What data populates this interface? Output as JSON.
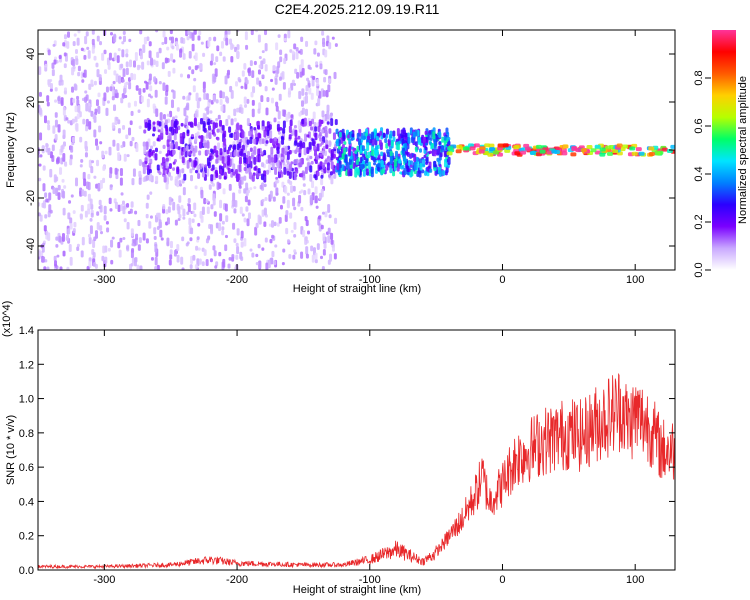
{
  "title": "C2E4.2025.212.09.19.R11",
  "colors": {
    "snr_line": "#e8282a",
    "colormap": [
      "#ffffff",
      "#c9a8ff",
      "#7a00ff",
      "#2b00ff",
      "#0080ff",
      "#00e5ff",
      "#00ff66",
      "#b6ff00",
      "#ffd000",
      "#ff5a00",
      "#ff0000",
      "#ff3399"
    ]
  },
  "chart_data": [
    {
      "type": "heatmap",
      "xlabel": "Height of straight line (km)",
      "ylabel": "Frequency (Hz)",
      "xlim": [
        -350,
        130
      ],
      "ylim": [
        -50,
        50
      ],
      "xticks": [
        -300,
        -200,
        -100,
        0,
        100
      ],
      "xtick_labels": [
        "-300",
        "-200",
        "-100",
        "0",
        "100"
      ],
      "yticks": [
        -40,
        -20,
        0,
        20,
        40
      ],
      "ytick_labels": [
        "-40",
        "-20",
        "0",
        "20",
        "40"
      ],
      "colorbar": {
        "label": "Normalized spectral amplitude",
        "range": [
          0,
          1
        ],
        "ticks": [
          0.0,
          0.2,
          0.4,
          0.6,
          0.8
        ],
        "tick_labels": [
          "0.0",
          "0.2",
          "0.4",
          "0.6",
          "0.8"
        ]
      },
      "features": [
        {
          "x_range": [
            -350,
            -125
          ],
          "freq_range": [
            -50,
            50
          ],
          "amplitude": 0.1
        },
        {
          "x_range": [
            -270,
            -125
          ],
          "freq_range": [
            -12,
            12
          ],
          "amplitude": 0.2
        },
        {
          "x_range": [
            -125,
            -40
          ],
          "freq_range": [
            -10,
            8
          ],
          "amplitude": 0.4
        },
        {
          "x_range": [
            -40,
            130
          ],
          "freq_range": [
            -2,
            2
          ],
          "amplitude": 0.9
        }
      ]
    },
    {
      "type": "line",
      "xlabel": "Height of straight line (km)",
      "ylabel": "SNR (10 * v/v)",
      "y_multiplier_label": "(x10^4)",
      "xlim": [
        -350,
        130
      ],
      "ylim": [
        0,
        1.4
      ],
      "xticks": [
        -300,
        -200,
        -100,
        0,
        100
      ],
      "xtick_labels": [
        "-300",
        "-200",
        "-100",
        "0",
        "100"
      ],
      "yticks": [
        0.0,
        0.2,
        0.4,
        0.6,
        0.8,
        1.0,
        1.2,
        1.4
      ],
      "ytick_labels": [
        "0.0",
        "0.2",
        "0.4",
        "0.6",
        "0.8",
        "1.0",
        "1.2",
        "1.4"
      ],
      "x": [
        -350,
        -300,
        -250,
        -220,
        -200,
        -150,
        -120,
        -100,
        -80,
        -60,
        -50,
        -40,
        -30,
        -20,
        -15,
        -10,
        0,
        10,
        30,
        50,
        60,
        70,
        80,
        90,
        95,
        100,
        110,
        120,
        130
      ],
      "y": [
        0.02,
        0.02,
        0.03,
        0.06,
        0.04,
        0.03,
        0.03,
        0.06,
        0.12,
        0.05,
        0.1,
        0.2,
        0.3,
        0.45,
        0.55,
        0.4,
        0.5,
        0.65,
        0.75,
        0.8,
        0.78,
        0.85,
        0.9,
        0.95,
        0.85,
        0.9,
        0.85,
        0.7,
        0.7
      ]
    }
  ]
}
